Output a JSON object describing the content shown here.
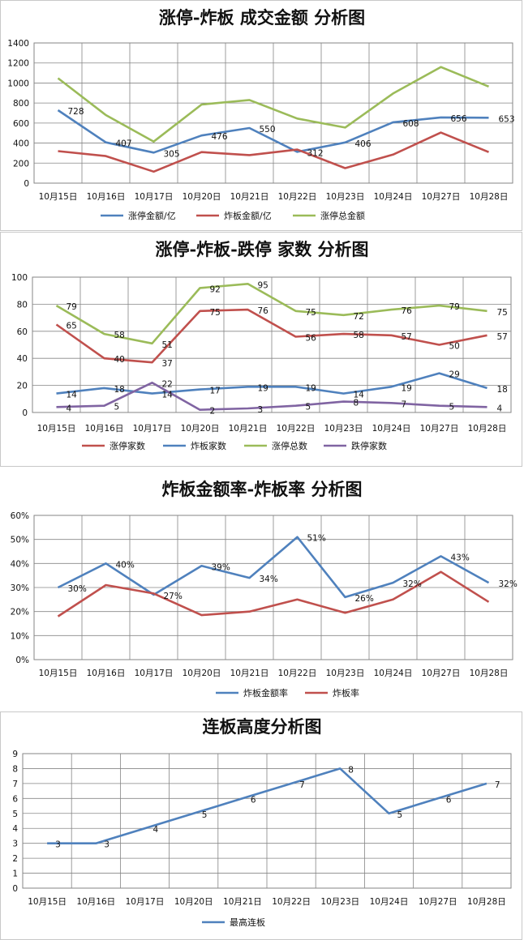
{
  "chart_data": [
    {
      "type": "line",
      "title": "涨停-炸板 成交金额 分析图",
      "categories": [
        "10月15日",
        "10月16日",
        "10月17日",
        "10月20日",
        "10月21日",
        "10月22日",
        "10月23日",
        "10月24日",
        "10月27日",
        "10月28日"
      ],
      "ylim": [
        0,
        1400
      ],
      "yticks": [
        0,
        200,
        400,
        600,
        800,
        1000,
        1200,
        1400
      ],
      "ytick_labels": [
        "0",
        "200",
        "400",
        "600",
        "800",
        "1000",
        "1200",
        "1400"
      ],
      "grid": true,
      "legend": "bottom",
      "series": [
        {
          "name": "涨停金额/亿",
          "color": "#4f81bd",
          "values": [
            728,
            407,
            305,
            476,
            550,
            312,
            406,
            608,
            656,
            653
          ],
          "labels": [
            "728",
            "407",
            "305",
            "476",
            "550",
            "312",
            "406",
            "608",
            "656",
            "653"
          ]
        },
        {
          "name": "炸板金额/亿",
          "color": "#c0504d",
          "values": [
            320,
            270,
            115,
            310,
            280,
            335,
            150,
            285,
            505,
            310
          ],
          "labels": [
            "",
            "",
            "",
            "",
            "",
            "",
            "",
            "",
            "",
            ""
          ]
        },
        {
          "name": "涨停总金额",
          "color": "#9bbb59",
          "values": [
            1048,
            680,
            415,
            785,
            830,
            645,
            555,
            895,
            1160,
            965
          ],
          "labels": [
            "",
            "",
            "",
            "",
            "",
            "",
            "",
            "",
            "",
            ""
          ]
        }
      ]
    },
    {
      "type": "line",
      "title": "涨停-炸板-跌停 家数 分析图",
      "categories": [
        "10月15日",
        "10月16日",
        "10月17日",
        "10月20日",
        "10月21日",
        "10月22日",
        "10月23日",
        "10月24日",
        "10月27日",
        "10月28日"
      ],
      "ylim": [
        0,
        100
      ],
      "yticks": [
        0,
        20,
        40,
        60,
        80,
        100
      ],
      "ytick_labels": [
        "0",
        "20",
        "40",
        "60",
        "80",
        "100"
      ],
      "grid": true,
      "legend": "bottom",
      "series": [
        {
          "name": "涨停家数",
          "color": "#c0504d",
          "values": [
            65,
            40,
            37,
            75,
            76,
            56,
            58,
            57,
            50,
            57
          ],
          "labels": [
            "65",
            "40",
            "37",
            "75",
            "76",
            "56",
            "58",
            "57",
            "50",
            "57"
          ]
        },
        {
          "name": "炸板家数",
          "color": "#4f81bd",
          "values": [
            14,
            18,
            14,
            17,
            19,
            19,
            14,
            19,
            29,
            18
          ],
          "labels": [
            "14",
            "18",
            "14",
            "17",
            "19",
            "19",
            "14",
            "19",
            "29",
            "18"
          ]
        },
        {
          "name": "涨停总数",
          "color": "#9bbb59",
          "values": [
            79,
            58,
            51,
            92,
            95,
            75,
            72,
            76,
            79,
            75
          ],
          "labels": [
            "79",
            "58",
            "51",
            "92",
            "95",
            "75",
            "72",
            "76",
            "79",
            "75"
          ]
        },
        {
          "name": "跌停家数",
          "color": "#8064a2",
          "values": [
            4,
            5,
            22,
            2,
            3,
            5,
            8,
            7,
            5,
            4
          ],
          "labels": [
            "4",
            "5",
            "22",
            "2",
            "3",
            "5",
            "8",
            "7",
            "5",
            "4"
          ]
        }
      ]
    },
    {
      "type": "line",
      "title": "炸板金额率-炸板率 分析图",
      "categories": [
        "10月15日",
        "10月16日",
        "10月17日",
        "10月20日",
        "10月21日",
        "10月22日",
        "10月23日",
        "10月24日",
        "10月27日",
        "10月28日"
      ],
      "ylim": [
        0,
        0.6
      ],
      "yticks": [
        0,
        0.1,
        0.2,
        0.3,
        0.4,
        0.5,
        0.6
      ],
      "ytick_labels": [
        "0%",
        "10%",
        "20%",
        "30%",
        "40%",
        "50%",
        "60%"
      ],
      "grid": true,
      "legend": "bottom",
      "series": [
        {
          "name": "炸板金额率",
          "color": "#4f81bd",
          "values": [
            0.3,
            0.4,
            0.27,
            0.39,
            0.34,
            0.51,
            0.26,
            0.32,
            0.43,
            0.32
          ],
          "labels": [
            "30%",
            "40%",
            "27%",
            "39%",
            "34%",
            "51%",
            "26%",
            "32%",
            "43%",
            "32%"
          ]
        },
        {
          "name": "炸板率",
          "color": "#c0504d",
          "values": [
            0.18,
            0.31,
            0.275,
            0.185,
            0.2,
            0.25,
            0.195,
            0.25,
            0.365,
            0.24
          ],
          "labels": [
            "",
            "",
            "",
            "",
            "",
            "",
            "",
            "",
            "",
            ""
          ]
        }
      ]
    },
    {
      "type": "line",
      "title": "连板高度分析图",
      "categories": [
        "10月15日",
        "10月16日",
        "10月17日",
        "10月20日",
        "10月21日",
        "10月22日",
        "10月23日",
        "10月24日",
        "10月27日",
        "10月28日"
      ],
      "ylim": [
        0,
        9
      ],
      "yticks": [
        0,
        1,
        2,
        3,
        4,
        5,
        6,
        7,
        8,
        9
      ],
      "ytick_labels": [
        "0",
        "1",
        "2",
        "3",
        "4",
        "5",
        "6",
        "7",
        "8",
        "9"
      ],
      "grid": true,
      "legend": "bottom",
      "series": [
        {
          "name": "最高连板",
          "color": "#4f81bd",
          "values": [
            3,
            3,
            4,
            5,
            6,
            7,
            8,
            5,
            6,
            7
          ],
          "labels": [
            "3",
            "3",
            "4",
            "5",
            "6",
            "7",
            "8",
            "5",
            "6",
            "7"
          ]
        }
      ]
    }
  ]
}
